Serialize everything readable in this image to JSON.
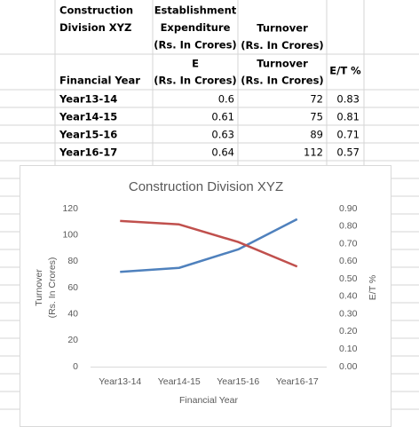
{
  "table": {
    "header": [
      {
        "lines": [
          "Construction",
          "Division XYZ"
        ]
      },
      {
        "lines": [
          "Establishment",
          "Expenditure",
          "(Rs. In Crores)"
        ]
      },
      {
        "lines": [
          "Turnover",
          "(Rs. In Crores)"
        ]
      }
    ],
    "subheader": [
      {
        "lines": [
          "Financial Year"
        ]
      },
      {
        "lines": [
          "E",
          "(Rs. In Crores)"
        ]
      },
      {
        "lines": [
          "Turnover",
          "(Rs. In Crores)"
        ]
      },
      {
        "lines": [
          "E/T %"
        ]
      }
    ],
    "rows": [
      [
        "Year13-14",
        0.6,
        72,
        0.83
      ],
      [
        "Year14-15",
        0.61,
        75,
        0.81
      ],
      [
        "Year15-16",
        0.63,
        89,
        0.71
      ],
      [
        "Year16-17",
        0.64,
        112,
        0.57
      ]
    ]
  },
  "chart_data": {
    "type": "line",
    "title": "Construction Division XYZ",
    "x_label": "Financial Year",
    "y_label": [
      "Turnover",
      "(Rs. In Crores)"
    ],
    "y2_label": "E/T %",
    "categories": [
      "Year13-14",
      "Year14-15",
      "Year15-16",
      "Year16-17"
    ],
    "series": [
      {
        "name": "Turnover",
        "color": "#4f81bd",
        "values": [
          72,
          75,
          89,
          112
        ]
      },
      {
        "name": "E/T %",
        "color": "#c0504d",
        "axis": "y2",
        "values": [
          0.83,
          0.81,
          0.71,
          0.57
        ]
      }
    ],
    "ylim": [
      0,
      120
    ],
    "yticks": [
      0,
      20,
      40,
      60,
      80,
      100,
      120
    ],
    "y2lim": [
      0,
      0.9
    ],
    "y2ticks": [
      {
        "value": 0,
        "label": "0.00"
      },
      {
        "value": 0.1,
        "label": "0.10"
      },
      {
        "value": 0.2,
        "label": "0.20"
      },
      {
        "value": 0.3,
        "label": "0.30"
      },
      {
        "value": 0.4,
        "label": "0.40"
      },
      {
        "value": 0.5,
        "label": "0.50"
      },
      {
        "value": 0.6,
        "label": "0.60"
      },
      {
        "value": 0.7,
        "label": "0.70"
      },
      {
        "value": 0.8,
        "label": "0.80"
      },
      {
        "value": 0.9,
        "label": "0.90"
      }
    ],
    "grid": false
  }
}
